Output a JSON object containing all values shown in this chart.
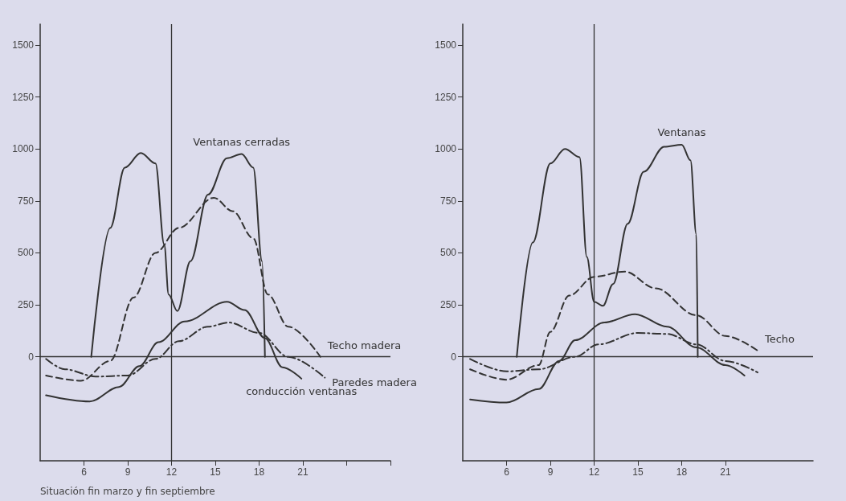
{
  "chart_data": [
    {
      "type": "line",
      "xlim": [
        3,
        27
      ],
      "xticks": [
        6,
        9,
        12,
        15,
        18,
        21,
        {
          "value": 24,
          "label": null
        },
        {
          "value": 27,
          "label": null
        }
      ],
      "ylim": [
        -500,
        1600
      ],
      "yticks": [
        0,
        250,
        500,
        750,
        1000,
        1250,
        1500
      ],
      "grid": false,
      "legend": false,
      "marker": "none",
      "ref_lines": [
        {
          "axis": "x",
          "value": 12
        },
        {
          "axis": "y",
          "value": 0
        }
      ],
      "annotations": [
        "Situación fin marzo y fin septiembre"
      ],
      "series": [
        {
          "name": "Ventanas cerradas",
          "color": "#333333",
          "line_style": "solid",
          "x": [
            6.5,
            7.8,
            8.8,
            9.9,
            10.9,
            11.5,
            11.8,
            12.4,
            13.3,
            14.5,
            15.8,
            16.8,
            17.6,
            18.2,
            18.4
          ],
          "values": [
            0,
            620,
            910,
            980,
            930,
            540,
            300,
            220,
            460,
            780,
            955,
            975,
            910,
            460,
            0
          ]
        },
        {
          "name": "Techo madera",
          "color": "#333333",
          "line_style": "dashed",
          "x": [
            3.4,
            5.8,
            7.8,
            9.4,
            10.9,
            12.5,
            14.9,
            16.2,
            17.6,
            18.6,
            20,
            22.2
          ],
          "values": [
            -90,
            -115,
            -20,
            285,
            500,
            620,
            765,
            700,
            570,
            300,
            145,
            0
          ]
        },
        {
          "name": "Paredes madera",
          "color": "#333333",
          "line_style": "dashdot",
          "x": [
            3.4,
            4.7,
            6.8,
            9,
            10.9,
            12.5,
            14.5,
            15.9,
            18,
            20,
            22.5
          ],
          "values": [
            -10,
            -60,
            -95,
            -90,
            -10,
            75,
            145,
            165,
            115,
            0,
            -100
          ]
        },
        {
          "name": "conducción ventanas",
          "color": "#333333",
          "line_style": "solid",
          "x": [
            3.4,
            6.4,
            8.4,
            9.8,
            11.1,
            12.9,
            15.8,
            17,
            18.4,
            19.6,
            20.9
          ],
          "values": [
            -185,
            -215,
            -145,
            -45,
            70,
            170,
            265,
            225,
            90,
            -50,
            -105
          ]
        }
      ]
    },
    {
      "type": "line",
      "xlim": [
        3,
        27
      ],
      "xticks": [
        6,
        9,
        12,
        15,
        18,
        21
      ],
      "ylim": [
        -500,
        1600
      ],
      "yticks": [
        0,
        250,
        500,
        750,
        1000,
        1250,
        1500
      ],
      "grid": false,
      "legend": false,
      "marker": "none",
      "ref_lines": [
        {
          "axis": "x",
          "value": 12
        },
        {
          "axis": "y",
          "value": 0
        }
      ],
      "series": [
        {
          "name": "Ventanas",
          "color": "#333333",
          "line_style": "solid",
          "x": [
            6.7,
            7.8,
            9,
            10,
            11,
            11.5,
            12,
            12.6,
            13.3,
            14.3,
            15.4,
            16.8,
            18,
            18.6,
            19,
            19.1
          ],
          "values": [
            0,
            550,
            930,
            1000,
            960,
            480,
            265,
            245,
            350,
            640,
            890,
            1010,
            1020,
            945,
            590,
            0
          ]
        },
        {
          "name": "Techo",
          "color": "#333333",
          "line_style": "dashed",
          "x": [
            3.5,
            6,
            8.2,
            9,
            10.3,
            12,
            14.1,
            16.2,
            19,
            21,
            23.2
          ],
          "values": [
            -60,
            -110,
            -40,
            120,
            295,
            385,
            410,
            330,
            200,
            100,
            30
          ]
        },
        {
          "color": "#333333",
          "line_style": "solid",
          "x": [
            3.5,
            6,
            8.2,
            9.6,
            10.7,
            12.7,
            14.8,
            17,
            19,
            21,
            22.3
          ],
          "values": [
            -205,
            -220,
            -155,
            -20,
            80,
            165,
            205,
            145,
            45,
            -40,
            -90
          ]
        },
        {
          "color": "#333333",
          "line_style": "dashdot",
          "x": [
            3.5,
            6,
            8.2,
            10.7,
            12.3,
            15,
            17,
            19,
            21,
            23.2
          ],
          "values": [
            -10,
            -70,
            -60,
            0,
            60,
            115,
            110,
            60,
            -20,
            -75
          ]
        }
      ]
    }
  ]
}
